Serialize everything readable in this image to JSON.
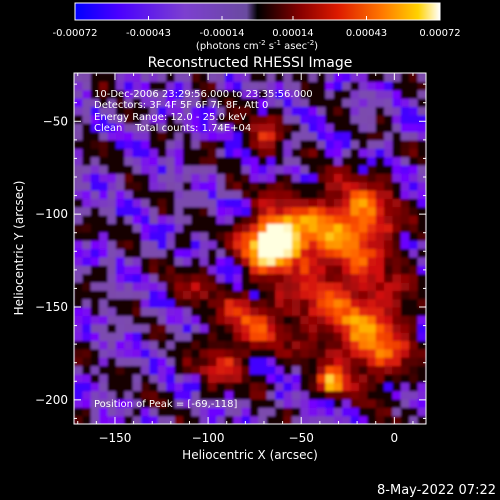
{
  "colorbar": {
    "tick_labels": [
      "-0.00072",
      "-0.00043",
      "-0.00014",
      "0.00014",
      "0.00043",
      "0.00072"
    ],
    "tick_values": [
      -0.00072,
      -0.00043,
      -0.00014,
      0.00014,
      0.00043,
      0.00072
    ],
    "range": [
      -0.00072,
      0.00072
    ],
    "unit_label": "(photons cm",
    "unit_exp1": "-2",
    "unit_mid": " s",
    "unit_exp2": "-1",
    "unit_mid2": " asec",
    "unit_exp3": "-2",
    "unit_end": ")"
  },
  "header": {
    "title": "Reconstructed RHESSI Image"
  },
  "annotations": {
    "time_range": "10-Dec-2006 23:29:56.000 to 23:35:56.000",
    "detectors": "Detectors: 3F 4F 5F 6F 7F 8F, Att 0",
    "energy_range": "Energy Range: 12.0 - 25.0 keV",
    "method_counts": "Clean    Total counts: 1.74E+04",
    "peak_position": "Position of Peak = [-69,-118]"
  },
  "footer": {
    "date": "8-May-2022 07:22"
  },
  "chart_data": {
    "type": "heatmap",
    "title": "Reconstructed RHESSI Image",
    "xlabel": "Heliocentric X (arcsec)",
    "ylabel": "Heliocentric Y (arcsec)",
    "xlim": [
      -172,
      17
    ],
    "ylim": [
      -213,
      -24
    ],
    "x_ticks": [
      -150,
      -100,
      -50,
      0
    ],
    "x_tick_labels": [
      "−150",
      "−100",
      "−50",
      "0"
    ],
    "y_ticks": [
      -50,
      -100,
      -150,
      -200
    ],
    "y_tick_labels": [
      "−50",
      "−100",
      "−150",
      "−200"
    ],
    "peak": [
      -69,
      -118
    ],
    "sources": [
      {
        "x": -69,
        "y": -118,
        "sx": 9,
        "sy": 8,
        "amp": 1.0
      },
      {
        "x": -55,
        "y": -112,
        "sx": 16,
        "sy": 14,
        "amp": 0.55
      },
      {
        "x": -20,
        "y": -105,
        "sx": 14,
        "sy": 16,
        "amp": 0.6
      },
      {
        "x": -30,
        "y": -150,
        "sx": 22,
        "sy": 18,
        "amp": 0.45
      },
      {
        "x": -80,
        "y": -160,
        "sx": 14,
        "sy": 12,
        "amp": 0.4
      },
      {
        "x": -12,
        "y": -175,
        "sx": 14,
        "sy": 14,
        "amp": 0.45
      },
      {
        "x": -36,
        "y": -193,
        "sx": 5,
        "sy": 5,
        "amp": 0.7
      },
      {
        "x": -95,
        "y": -185,
        "sx": 10,
        "sy": 8,
        "amp": 0.35
      },
      {
        "x": -72,
        "y": -60,
        "sx": 6,
        "sy": 10,
        "amp": 0.35
      },
      {
        "x": -110,
        "y": -140,
        "sx": 8,
        "sy": 8,
        "amp": 0.25
      }
    ],
    "colormap": [
      "#0000ff",
      "#7a00ff",
      "#7c4bb2",
      "#7a4aa8",
      "#000000",
      "#6a0000",
      "#d01010",
      "#ff5500",
      "#ffc000",
      "#ffffe0"
    ]
  }
}
